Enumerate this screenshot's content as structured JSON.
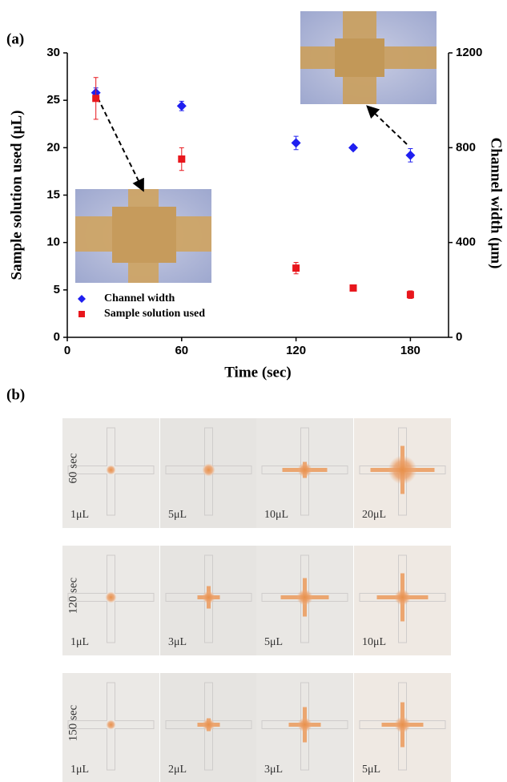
{
  "chart_data": {
    "type": "scatter",
    "panel_label": "(a)",
    "x_label": "Time (sec)",
    "y_label": "Sample solution used (μL)",
    "y2_label": "Channel width (μm)",
    "xlim": [
      0,
      200
    ],
    "xticks": [
      0,
      60,
      120,
      180
    ],
    "ylim": [
      0,
      30
    ],
    "yticks": [
      0,
      5,
      10,
      15,
      20,
      25,
      30
    ],
    "y2lim": [
      0,
      1200
    ],
    "y2ticks": [
      0,
      400,
      800,
      1200
    ],
    "legend": "lower left",
    "series": [
      {
        "name": "Channel width",
        "color": "#1f1ff0",
        "marker": "diamond",
        "axis": "y2",
        "x": [
          15,
          60,
          120,
          150,
          180
        ],
        "values": [
          1032,
          976,
          820,
          800,
          768
        ],
        "errors": [
          20,
          20,
          28,
          10,
          28
        ]
      },
      {
        "name": "Sample solution used",
        "color": "#e8161c",
        "marker": "square",
        "x": [
          15,
          60,
          120,
          150,
          180
        ],
        "values": [
          25.2,
          18.8,
          7.3,
          5.2,
          4.5
        ],
        "errors": [
          2.2,
          1.2,
          0.6,
          0.2,
          0.4
        ]
      }
    ]
  },
  "panel_b": {
    "label": "(b)",
    "rows": [
      {
        "time": "60 sec",
        "volumes": [
          "1μL",
          "5μL",
          "10μL",
          "20μL"
        ]
      },
      {
        "time": "120 sec",
        "volumes": [
          "1μL",
          "3μL",
          "5μL",
          "10μL"
        ]
      },
      {
        "time": "150 sec",
        "volumes": [
          "1μL",
          "2μL",
          "3μL",
          "5μL"
        ]
      }
    ]
  }
}
